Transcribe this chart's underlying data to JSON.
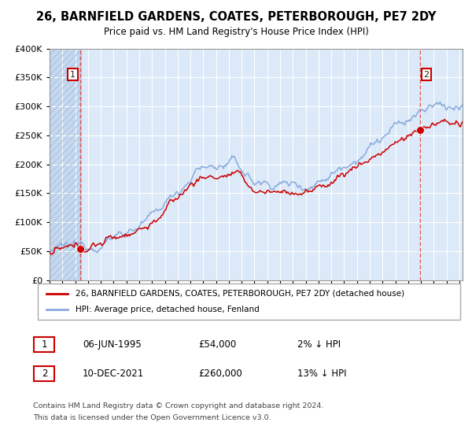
{
  "title": "26, BARNFIELD GARDENS, COATES, PETERBOROUGH, PE7 2DY",
  "subtitle": "Price paid vs. HM Land Registry's House Price Index (HPI)",
  "legend_line1": "26, BARNFIELD GARDENS, COATES, PETERBOROUGH, PE7 2DY (detached house)",
  "legend_line2": "HPI: Average price, detached house, Fenland",
  "marker1_date": "06-JUN-1995",
  "marker1_price": 54000,
  "marker1_label": "2% ↓ HPI",
  "marker2_date": "10-DEC-2021",
  "marker2_price": 260000,
  "marker2_label": "13% ↓ HPI",
  "footnote1": "Contains HM Land Registry data © Crown copyright and database right 2024.",
  "footnote2": "This data is licensed under the Open Government Licence v3.0.",
  "xmin": 1993.0,
  "xmax": 2025.25,
  "ymin": 0,
  "ymax": 400000,
  "bg_color": "#dce9f8",
  "red_line_color": "#cc0000",
  "blue_line_color": "#88aadd",
  "marker_fill": "#cc0000",
  "vline_color": "#dd4444",
  "grid_color": "#ffffff",
  "label_color": "#cc0000",
  "text_color": "#222222"
}
